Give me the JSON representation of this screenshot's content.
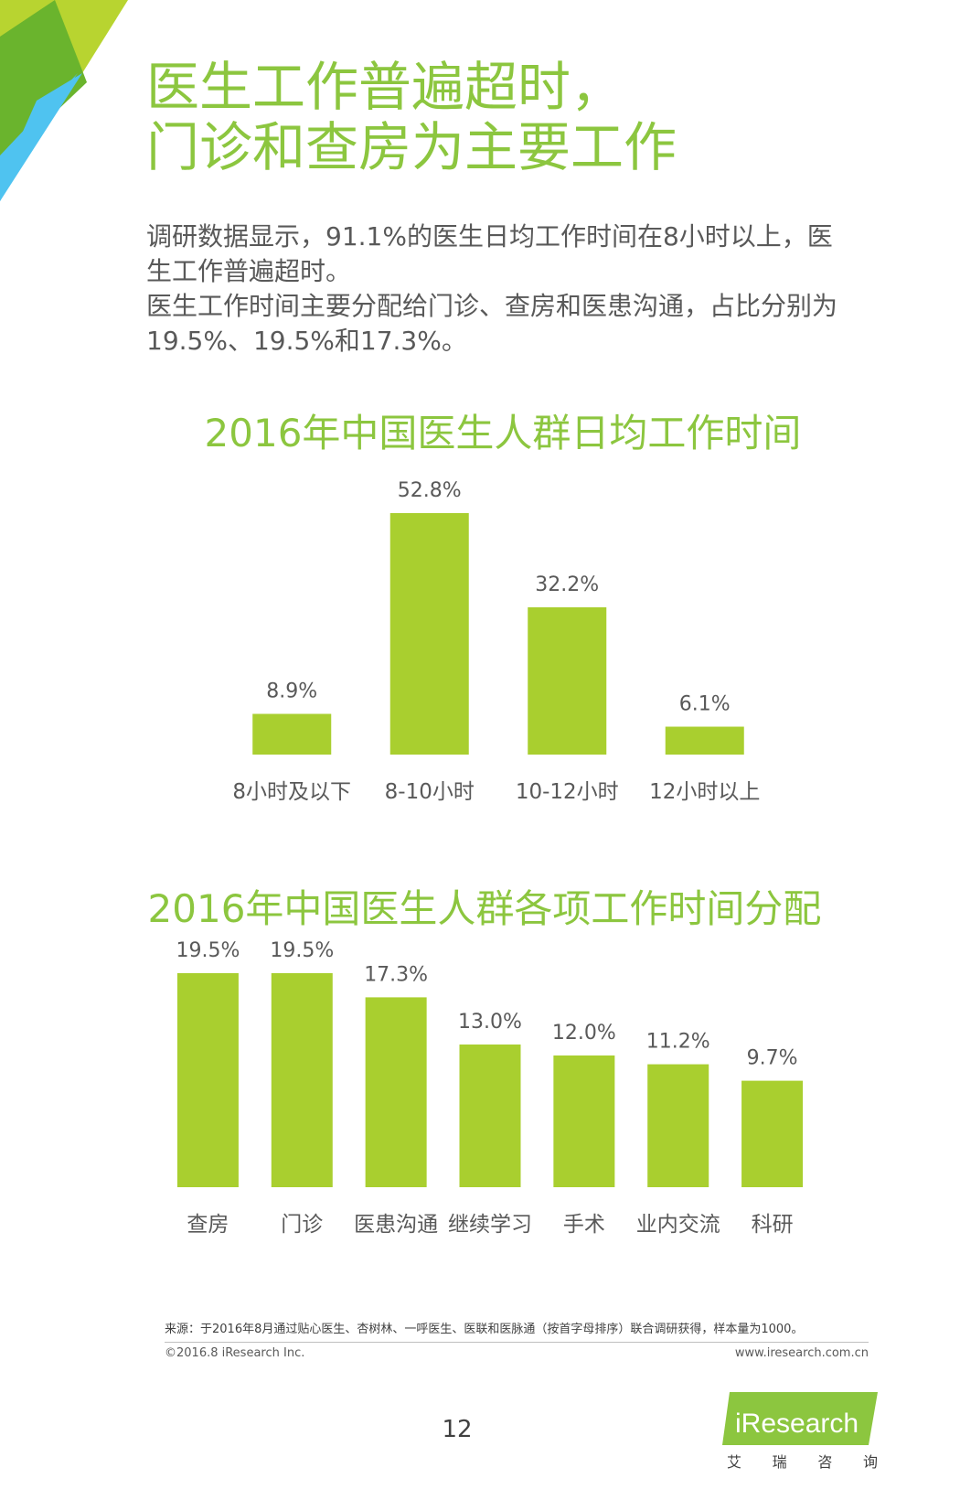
{
  "page": {
    "title_lines": [
      "医生工作普遍超时，",
      "门诊和查房为主要工作"
    ],
    "intro_lines": [
      "调研数据显示，91.1%的医生日均工作时间在8小时以上，医生工作普遍超时。",
      "医生工作时间主要分配给门诊、查房和医患沟通，占比分别为19.5%、19.5%和17.3%。"
    ],
    "source": "来源：于2016年8月通过贴心医生、杏树林、一呼医生、医联和医脉通（按首字母排序）联合调研获得，样本量为1000。",
    "copyright": "©2016.8 iResearch Inc.",
    "url": "www.iresearch.com.cn",
    "page_number": "12",
    "logo_text": "iResearch",
    "logo_sub": [
      "艾",
      "瑞",
      "咨",
      "询"
    ]
  },
  "colors": {
    "bar": "#a9cf2f",
    "title": "#8cc63f",
    "text": "#595959",
    "corner_light": "#b8d430",
    "corner_mid": "#6ab42d",
    "corner_blue": "#4fc3f0"
  },
  "chart_data": [
    {
      "type": "bar",
      "title": "2016年中国医生人群日均工作时间",
      "categories": [
        "8小时及以下",
        "8-10小时",
        "10-12小时",
        "12小时以上"
      ],
      "values": [
        8.9,
        52.8,
        32.2,
        6.1
      ],
      "value_labels": [
        "8.9%",
        "52.8%",
        "32.2%",
        "6.1%"
      ],
      "xlabel": "",
      "ylabel": "",
      "ylim": [
        0,
        60
      ],
      "grid": false,
      "legend": "none"
    },
    {
      "type": "bar",
      "title": "2016年中国医生人群各项工作时间分配",
      "categories": [
        "查房",
        "门诊",
        "医患沟通",
        "继续学习",
        "手术",
        "业内交流",
        "科研"
      ],
      "values": [
        19.5,
        19.5,
        17.3,
        13.0,
        12.0,
        11.2,
        9.7
      ],
      "value_labels": [
        "19.5%",
        "19.5%",
        "17.3%",
        "13.0%",
        "12.0%",
        "11.2%",
        "9.7%"
      ],
      "xlabel": "",
      "ylabel": "",
      "ylim": [
        0,
        20
      ],
      "grid": false,
      "legend": "none"
    }
  ]
}
